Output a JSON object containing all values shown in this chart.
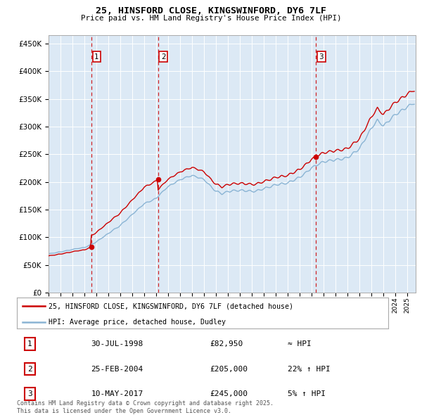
{
  "title1": "25, HINSFORD CLOSE, KINGSWINFORD, DY6 7LF",
  "title2": "Price paid vs. HM Land Registry's House Price Index (HPI)",
  "bg_color": "#dce9f5",
  "red_color": "#cc0000",
  "blue_color": "#8ab4d4",
  "sale_dates": [
    1998.58,
    2004.15,
    2017.36
  ],
  "sale_prices": [
    82950,
    205000,
    245000
  ],
  "sale_labels": [
    "1",
    "2",
    "3"
  ],
  "yticks": [
    0,
    50000,
    100000,
    150000,
    200000,
    250000,
    300000,
    350000,
    400000,
    450000
  ],
  "ylim": [
    0,
    465000
  ],
  "xlim_start": 1995.0,
  "xlim_end": 2025.7,
  "footer": "Contains HM Land Registry data © Crown copyright and database right 2025.\nThis data is licensed under the Open Government Licence v3.0.",
  "legend_label1": "25, HINSFORD CLOSE, KINGSWINFORD, DY6 7LF (detached house)",
  "legend_label2": "HPI: Average price, detached house, Dudley",
  "table_data": [
    [
      "1",
      "30-JUL-1998",
      "£82,950",
      "≈ HPI"
    ],
    [
      "2",
      "25-FEB-2004",
      "£205,000",
      "22% ↑ HPI"
    ],
    [
      "3",
      "10-MAY-2017",
      "£245,000",
      "5% ↑ HPI"
    ]
  ]
}
